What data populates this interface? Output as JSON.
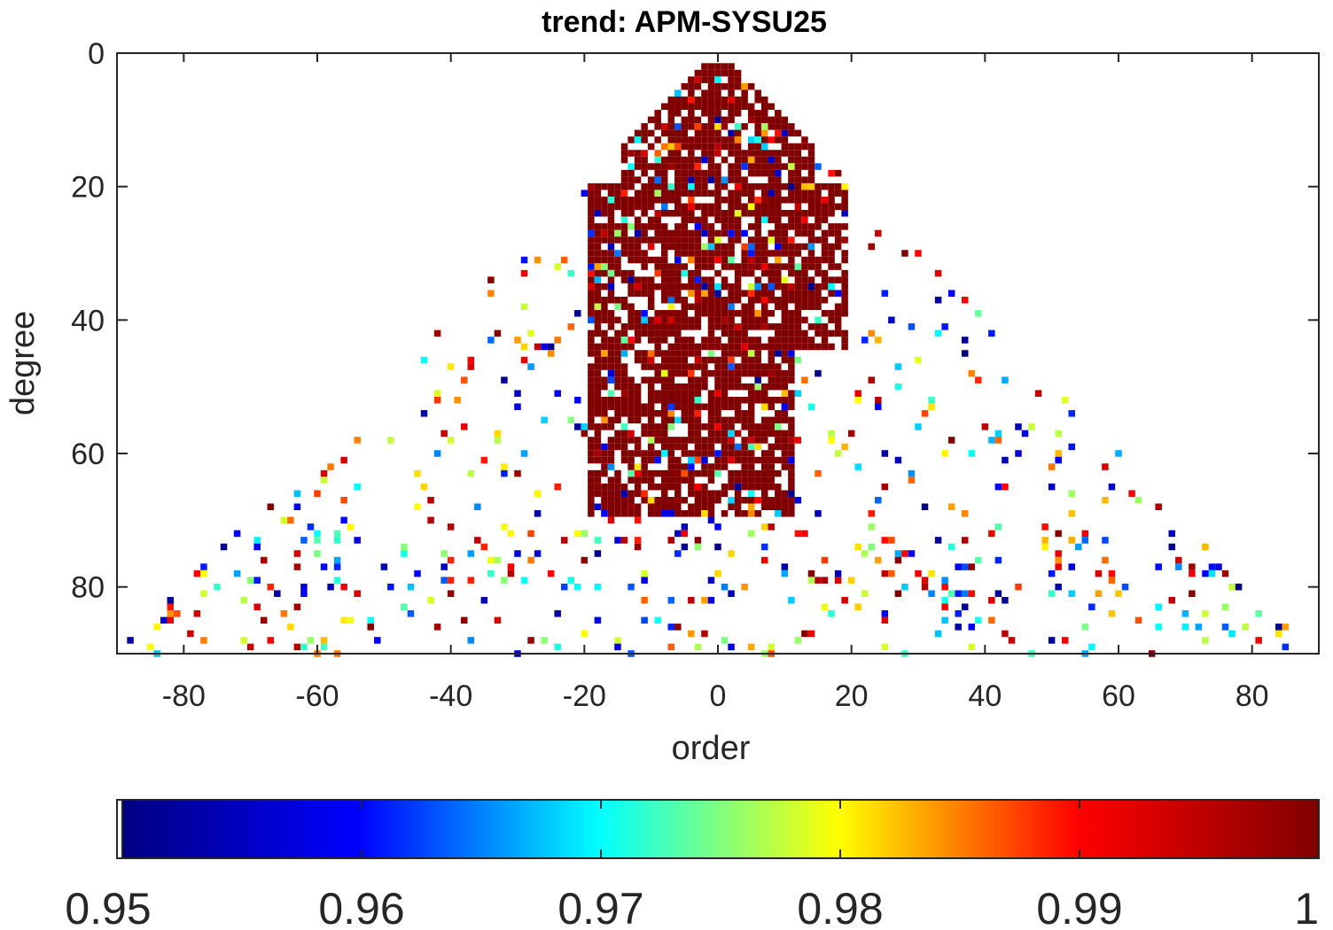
{
  "chart_data": {
    "type": "heatmap",
    "title": "trend: APM-SYSU25",
    "xlabel": "order",
    "ylabel": "degree",
    "xlim": [
      -90,
      90
    ],
    "ylim": [
      0,
      90
    ],
    "y_reversed": true,
    "xticks": [
      -80,
      -60,
      -40,
      -20,
      0,
      20,
      40,
      60,
      80
    ],
    "yticks": [
      0,
      20,
      40,
      60,
      80
    ],
    "grid": false,
    "colormap": "jet",
    "colorbar": {
      "location": "bottom",
      "clim": [
        0.95,
        1.0
      ],
      "ticks": [
        "0.95",
        "0.96",
        "0.97",
        "0.98",
        "0.99",
        "1"
      ],
      "colors": [
        "#000080",
        "#0000ff",
        "#00ffff",
        "#ffff00",
        "#ff0000",
        "#800000"
      ]
    },
    "data_description": "Cell value per (order m, degree l) with |m| <= l <= 90; blank cells fall below 0.95. Cells with value 1 dominate the central triangle for degrees below about 70 and |order| below about 20; values between 0.95 and 1 are scattered in the outer parts of the triangle.",
    "regions": [
      {
        "degree_range": [
          2,
          20
        ],
        "order_range": [
          -15,
          15
        ],
        "typical_value": 1.0
      },
      {
        "degree_range": [
          20,
          45
        ],
        "order_range": [
          -20,
          20
        ],
        "typical_value": 1.0
      },
      {
        "degree_range": [
          45,
          70
        ],
        "order_range": [
          -20,
          12
        ],
        "typical_value": 1.0
      },
      {
        "degree_range": [
          30,
          90
        ],
        "order_range": [
          -90,
          90
        ],
        "typical_value": "scattered 0.95-1.0"
      }
    ]
  }
}
